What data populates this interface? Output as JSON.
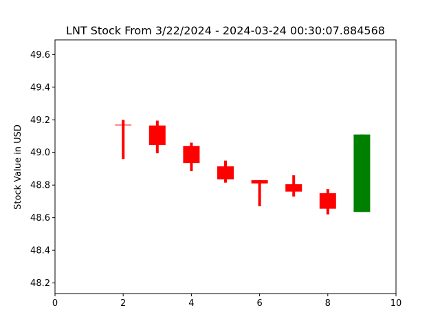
{
  "chart_data": {
    "type": "candlestick",
    "title": "LNT Stock From 3/22/2024 - 2024-03-24 00:30:07.884568",
    "xlabel": "",
    "ylabel": "Stock Value in USD",
    "xlim": [
      0,
      10
    ],
    "ylim": [
      48.135,
      49.69
    ],
    "x_ticks": [
      0,
      2,
      4,
      6,
      8,
      10
    ],
    "y_ticks": [
      48.2,
      48.4,
      48.6,
      48.8,
      49.0,
      49.2,
      49.4,
      49.6
    ],
    "grid": false,
    "candles": [
      {
        "x": 2,
        "open": 49.17,
        "close": 49.17,
        "high": 49.2,
        "low": 48.96,
        "color": "#ff0000"
      },
      {
        "x": 3,
        "open": 49.165,
        "close": 49.045,
        "high": 49.195,
        "low": 48.995,
        "color": "#ff0000"
      },
      {
        "x": 4,
        "open": 49.04,
        "close": 48.935,
        "high": 49.06,
        "low": 48.885,
        "color": "#ff0000"
      },
      {
        "x": 5,
        "open": 48.915,
        "close": 48.835,
        "high": 48.95,
        "low": 48.815,
        "color": "#ff0000"
      },
      {
        "x": 6,
        "open": 48.83,
        "close": 48.81,
        "high": 48.83,
        "low": 48.67,
        "color": "#ff0000"
      },
      {
        "x": 7,
        "open": 48.805,
        "close": 48.76,
        "high": 48.86,
        "low": 48.73,
        "color": "#ff0000"
      },
      {
        "x": 8,
        "open": 48.75,
        "close": 48.655,
        "high": 48.775,
        "low": 48.62,
        "color": "#ff0000"
      },
      {
        "x": 9,
        "open": 49.11,
        "close": 48.635,
        "high": 49.11,
        "low": 48.635,
        "color": "#008000"
      }
    ]
  }
}
